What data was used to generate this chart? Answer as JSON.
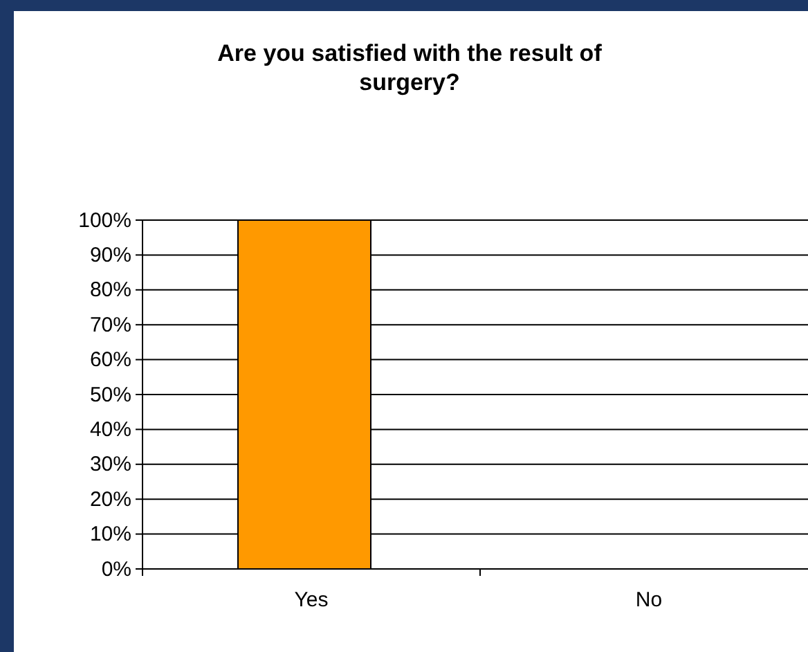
{
  "chart_data": {
    "type": "bar",
    "title": "Are you satisfied with the result of surgery?",
    "categories": [
      "Yes",
      "No"
    ],
    "values": [
      100,
      0
    ],
    "color": "#ff9900",
    "ylim": [
      0,
      100
    ],
    "yticks": [
      {
        "value": 0,
        "label": "0%"
      },
      {
        "value": 10,
        "label": "10%"
      },
      {
        "value": 20,
        "label": "20%"
      },
      {
        "value": 30,
        "label": "30%"
      },
      {
        "value": 40,
        "label": "40%"
      },
      {
        "value": 50,
        "label": "50%"
      },
      {
        "value": 60,
        "label": "60%"
      },
      {
        "value": 70,
        "label": "70%"
      },
      {
        "value": 80,
        "label": "80%"
      },
      {
        "value": 90,
        "label": "90%"
      },
      {
        "value": 100,
        "label": "100%"
      }
    ],
    "grid": "y"
  }
}
